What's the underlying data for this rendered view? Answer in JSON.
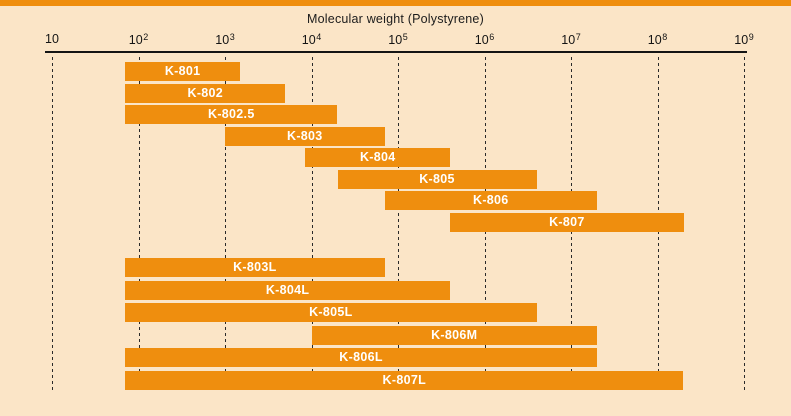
{
  "chart_data": {
    "type": "bar",
    "variant": "horizontal-range-bars",
    "title": "Molecular weight (Polystyrene)",
    "x_scale": "log",
    "xlim": [
      10,
      1000000000
    ],
    "x_tick_exponents": [
      1,
      2,
      3,
      4,
      5,
      6,
      7,
      8,
      9
    ],
    "x_tick_base": "10",
    "grid": "dashed-vertical-at-each-decade",
    "legend": "none",
    "bar_groups": [
      {
        "name": "analytical-columns",
        "rows": 8
      },
      {
        "name": "linear-columns",
        "rows": 6
      }
    ],
    "series": [
      {
        "name": "K-801",
        "min": 70,
        "max": 1500,
        "group": 1
      },
      {
        "name": "K-802",
        "min": 70,
        "max": 5000,
        "group": 1
      },
      {
        "name": "K-802.5",
        "min": 70,
        "max": 20000,
        "group": 1
      },
      {
        "name": "K-803",
        "min": 1000,
        "max": 70000,
        "group": 1
      },
      {
        "name": "K-804",
        "min": 8500,
        "max": 400000,
        "group": 1
      },
      {
        "name": "K-805",
        "min": 20000,
        "max": 4000000,
        "group": 1
      },
      {
        "name": "K-806",
        "min": 70000,
        "max": 20000000,
        "group": 1
      },
      {
        "name": "K-807",
        "min": 400000,
        "max": 200000000,
        "group": 1
      },
      {
        "name": "K-803L",
        "min": 70,
        "max": 70000,
        "group": 2
      },
      {
        "name": "K-804L",
        "min": 70,
        "max": 400000,
        "group": 2
      },
      {
        "name": "K-805L",
        "min": 70,
        "max": 4000000,
        "group": 2
      },
      {
        "name": "K-806M",
        "min": 10000,
        "max": 20000000,
        "group": 2
      },
      {
        "name": "K-806L",
        "min": 70,
        "max": 20000000,
        "group": 2
      },
      {
        "name": "K-807L",
        "min": 70,
        "max": 200000000,
        "group": 2
      }
    ],
    "colors": {
      "bar": "#ef8e0e",
      "bar_label": "#ffffff",
      "background": "#fbe5c7",
      "axis": "#141414",
      "top_strip": "#ef8e0e"
    }
  }
}
